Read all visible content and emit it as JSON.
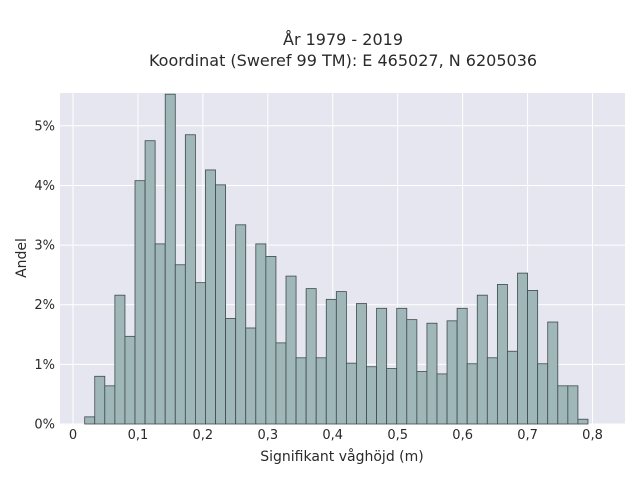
{
  "chart_data": {
    "type": "bar",
    "title_line1": "År 1979 - 2019",
    "title_line2": "Koordinat (Sweref 99 TM): E 465027, N 6205036",
    "xlabel": "Signifikant våghöjd (m)",
    "ylabel": "Andel",
    "xlim": [
      -0.02,
      0.85
    ],
    "ylim": [
      0,
      0.0555
    ],
    "bin_width": 0.0155,
    "bin_start": 0.018,
    "x_ticks": [
      {
        "value": 0,
        "label": "0"
      },
      {
        "value": 0.1,
        "label": "0,1"
      },
      {
        "value": 0.2,
        "label": "0,2"
      },
      {
        "value": 0.3,
        "label": "0,3"
      },
      {
        "value": 0.4,
        "label": "0,4"
      },
      {
        "value": 0.5,
        "label": "0,5"
      },
      {
        "value": 0.6,
        "label": "0,6"
      },
      {
        "value": 0.7,
        "label": "0,7"
      },
      {
        "value": 0.8,
        "label": "0,8"
      }
    ],
    "y_ticks": [
      {
        "value": 0,
        "label": "0%"
      },
      {
        "value": 0.01,
        "label": "1%"
      },
      {
        "value": 0.02,
        "label": "2%"
      },
      {
        "value": 0.03,
        "label": "3%"
      },
      {
        "value": 0.04,
        "label": "4%"
      },
      {
        "value": 0.05,
        "label": "5%"
      }
    ],
    "grid": true,
    "values": [
      0.0012,
      0.008,
      0.0064,
      0.0216,
      0.0147,
      0.0408,
      0.0475,
      0.0302,
      0.0553,
      0.0267,
      0.0485,
      0.0237,
      0.0426,
      0.0401,
      0.0177,
      0.0334,
      0.0161,
      0.0302,
      0.0281,
      0.0136,
      0.0248,
      0.0111,
      0.0227,
      0.0111,
      0.0209,
      0.0222,
      0.0102,
      0.0202,
      0.0096,
      0.0194,
      0.0093,
      0.0194,
      0.0175,
      0.0088,
      0.0169,
      0.0084,
      0.0173,
      0.0194,
      0.0101,
      0.0216,
      0.0111,
      0.0234,
      0.0122,
      0.0253,
      0.0224,
      0.0101,
      0.0171,
      0.0064,
      0.0064,
      0.0008
    ],
    "colors": {
      "bar_fill": "#9fb7b9",
      "bar_stroke": "#3f4a4b",
      "plot_bg": "#e5e6ef",
      "grid": "#ffffff"
    }
  }
}
